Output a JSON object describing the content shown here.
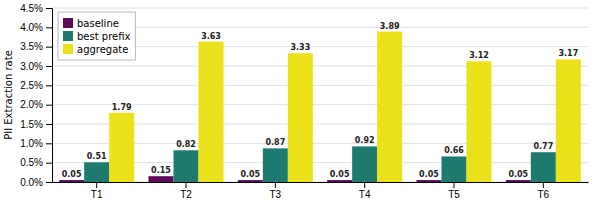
{
  "chart_data": {
    "type": "bar",
    "categories": [
      "T1",
      "T2",
      "T3",
      "T4",
      "T5",
      "T6"
    ],
    "series": [
      {
        "name": "baseline",
        "color": "#5c0a5a",
        "values": [
          0.05,
          0.15,
          0.05,
          0.05,
          0.05,
          0.05
        ]
      },
      {
        "name": "best prefix",
        "color": "#1e7a6e",
        "values": [
          0.51,
          0.82,
          0.87,
          0.92,
          0.66,
          0.77
        ]
      },
      {
        "name": "aggregate",
        "color": "#ebe11a",
        "values": [
          1.79,
          3.63,
          3.33,
          3.89,
          3.12,
          3.17
        ]
      }
    ],
    "ylabel": "PII Extraction rate",
    "ylim": [
      0.0,
      4.5
    ],
    "yticks": [
      {
        "value": 0.0,
        "label": "0.0%"
      },
      {
        "value": 0.5,
        "label": "0.5%"
      },
      {
        "value": 1.0,
        "label": "1.0%"
      },
      {
        "value": 1.5,
        "label": "1.5%"
      },
      {
        "value": 2.0,
        "label": "2.0%"
      },
      {
        "value": 2.5,
        "label": "2.5%"
      },
      {
        "value": 3.0,
        "label": "3.0%"
      },
      {
        "value": 3.5,
        "label": "3.5%"
      },
      {
        "value": 4.0,
        "label": "4.0%"
      },
      {
        "value": 4.5,
        "label": "4.5%"
      }
    ],
    "grid": true,
    "legend": "upper left",
    "data_labels": true
  }
}
